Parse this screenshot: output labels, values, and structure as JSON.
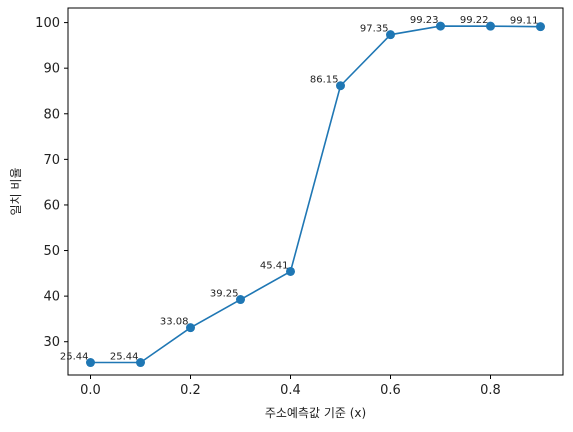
{
  "chart_data": {
    "type": "line",
    "xlabel": "주소예측값 기준 (x)",
    "ylabel": "일치 비율",
    "x": [
      0.0,
      0.1,
      0.2,
      0.3,
      0.4,
      0.5,
      0.6,
      0.7,
      0.8,
      0.9
    ],
    "series": [
      {
        "values": [
          25.44,
          25.44,
          33.08,
          39.25,
          45.41,
          86.15,
          97.35,
          99.23,
          99.22,
          99.11
        ],
        "labels": [
          "25.44",
          "25.44",
          "33.08",
          "39.25",
          "45.41",
          "86.15",
          "97.35",
          "99.23",
          "99.22",
          "99.11"
        ],
        "color": "#1f77b4"
      }
    ],
    "xlim": [
      -0.045,
      0.945
    ],
    "ylim": [
      22.7,
      103.2
    ],
    "xticks": [
      0.0,
      0.2,
      0.4,
      0.6,
      0.8
    ],
    "xtick_labels": [
      "0.0",
      "0.2",
      "0.4",
      "0.6",
      "0.8"
    ],
    "yticks": [
      30,
      40,
      50,
      60,
      70,
      80,
      90,
      100
    ],
    "ytick_labels": [
      "30",
      "40",
      "50",
      "60",
      "70",
      "80",
      "90",
      "100"
    ],
    "grid": false,
    "legend": "none"
  }
}
